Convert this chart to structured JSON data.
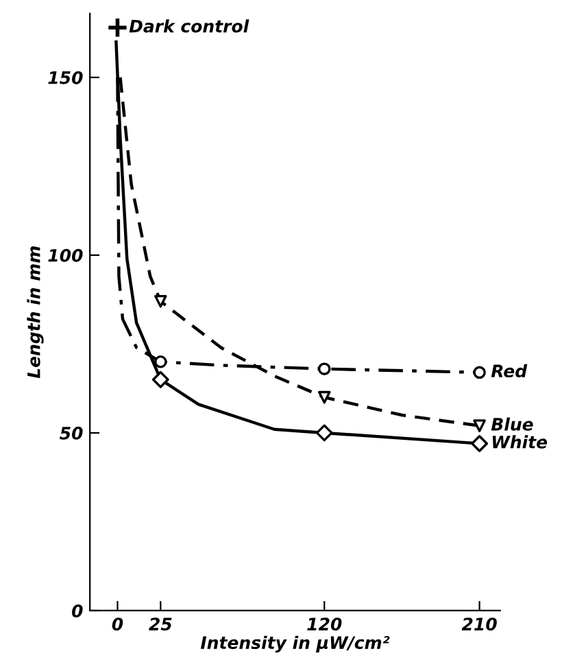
{
  "chart_data": {
    "type": "line",
    "xlabel": "Intensity in μW/cm²",
    "ylabel": "Length in mm",
    "xlim": [
      -16,
      222
    ],
    "ylim": [
      0,
      168
    ],
    "xticks": [
      0,
      25,
      120,
      210
    ],
    "yticks": [
      0,
      50,
      100,
      150
    ],
    "grid": false,
    "legend": false,
    "series": [
      {
        "color": "#000000",
        "line_style": "solid",
        "x": [
          -0.8,
          1.6,
          5.5,
          11,
          25,
          47,
          91,
          120,
          210
        ],
        "values": [
          160,
          133,
          99,
          81,
          65,
          58,
          51,
          50,
          47
        ]
      },
      {
        "color": "#000000",
        "line_style": "dashdot",
        "x": [
          0,
          0.8,
          3,
          11,
          25,
          60,
          120,
          210
        ],
        "values": [
          150,
          94,
          82,
          74,
          70,
          69,
          68,
          67
        ]
      },
      {
        "color": "#000000",
        "line_style": "dashed",
        "x": [
          1.6,
          8,
          19,
          25,
          60,
          91,
          120,
          165,
          210
        ],
        "values": [
          150,
          120,
          94,
          87,
          74,
          66,
          60,
          55,
          52
        ]
      },
      {
        "type": "scatter",
        "name": "Red",
        "color": "#000000",
        "marker": "circle",
        "x": [
          25,
          120,
          210
        ],
        "values": [
          70,
          68,
          67
        ]
      },
      {
        "type": "scatter",
        "name": "Blue",
        "color": "#000000",
        "marker": "triangle",
        "x": [
          25,
          120,
          210
        ],
        "values": [
          87,
          60,
          52
        ]
      },
      {
        "type": "scatter",
        "name": "White",
        "color": "#000000",
        "marker": "diamond",
        "x": [
          25,
          120,
          210
        ],
        "values": [
          65,
          50,
          47
        ]
      },
      {
        "type": "scatter",
        "name": "Dark control",
        "color": "#000000",
        "marker": "cross",
        "x": [
          0
        ],
        "values": [
          164
        ]
      }
    ]
  }
}
